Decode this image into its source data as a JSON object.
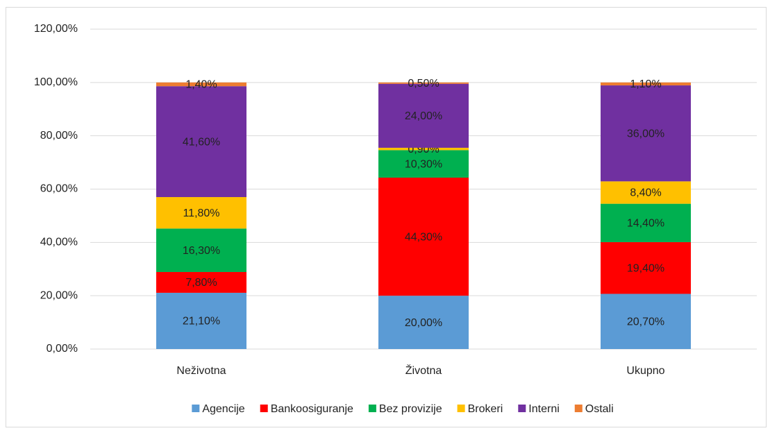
{
  "chart_data": {
    "type": "stacked_bar",
    "categories": [
      "Neživotna",
      "Životna",
      "Ukupno"
    ],
    "series": [
      {
        "name": "Agencije",
        "color": "#5b9bd5",
        "values": [
          21.1,
          20.0,
          20.7
        ],
        "value_labels": [
          "21,10%",
          "20,00%",
          "20,70%"
        ]
      },
      {
        "name": "Bankoosiguranje",
        "color": "#ff0000",
        "values": [
          7.8,
          44.3,
          19.4
        ],
        "value_labels": [
          "7,80%",
          "44,30%",
          "19,40%"
        ]
      },
      {
        "name": "Bez provizije",
        "color": "#00b050",
        "values": [
          16.3,
          10.3,
          14.4
        ],
        "value_labels": [
          "16,30%",
          "10,30%",
          "14,40%"
        ]
      },
      {
        "name": "Brokeri",
        "color": "#ffc000",
        "values": [
          11.8,
          0.9,
          8.4
        ],
        "value_labels": [
          "11,80%",
          "0,90%",
          "8,40%"
        ]
      },
      {
        "name": "Interni",
        "color": "#7030a0",
        "values": [
          41.6,
          24.0,
          36.0
        ],
        "value_labels": [
          "41,60%",
          "24,00%",
          "36,00%"
        ]
      },
      {
        "name": "Ostali",
        "color": "#ed7d31",
        "values": [
          1.4,
          0.5,
          1.1
        ],
        "value_labels": [
          "1,40%",
          "0,50%",
          "1,10%"
        ]
      }
    ],
    "ylim": [
      0,
      120
    ],
    "yticks": [
      {
        "value": 0,
        "label": "0,00%"
      },
      {
        "value": 20,
        "label": "20,00%"
      },
      {
        "value": 40,
        "label": "40,00%"
      },
      {
        "value": 60,
        "label": "60,00%"
      },
      {
        "value": 80,
        "label": "80,00%"
      },
      {
        "value": 100,
        "label": "100,00%"
      },
      {
        "value": 120,
        "label": "120,00%"
      }
    ],
    "grid": true,
    "legend": "bottom"
  }
}
